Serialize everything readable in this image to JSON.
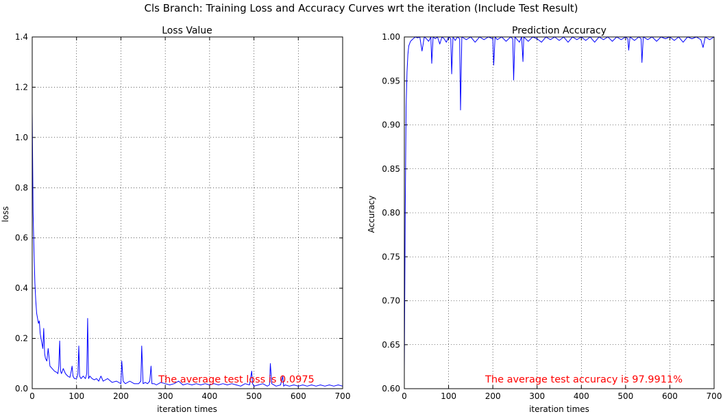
{
  "suptitle": "Cls Branch: Training Loss and Accuracy Curves wrt the iteration (Include Test Result)",
  "chart_data": [
    {
      "type": "line",
      "title": "Loss Value",
      "xlabel": "iteration times",
      "ylabel": "loss",
      "xlim": [
        0,
        700
      ],
      "ylim": [
        0.0,
        1.4
      ],
      "xticks": [
        "0",
        "100",
        "200",
        "300",
        "400",
        "500",
        "600",
        "700"
      ],
      "yticks": [
        "0.0",
        "0.2",
        "0.4",
        "0.6",
        "0.8",
        "1.0",
        "1.2",
        "1.4"
      ],
      "grid": true,
      "line_color": "#0000ff",
      "annotation": "The average test loss is 0.0975",
      "annotation_color": "#ff0000",
      "series": [
        {
          "x": [
            0,
            2,
            4,
            6,
            8,
            10,
            12,
            14,
            16,
            18,
            20,
            22,
            24,
            26,
            28,
            30,
            33,
            36,
            40,
            45,
            50,
            55,
            58,
            60,
            62,
            64,
            66,
            70,
            75,
            80,
            85,
            88,
            90,
            92,
            95,
            100,
            103,
            105,
            107,
            110,
            115,
            120,
            123,
            125,
            127,
            130,
            135,
            140,
            145,
            150,
            155,
            160,
            170,
            180,
            190,
            200,
            202,
            205,
            210,
            220,
            230,
            240,
            245,
            247,
            250,
            255,
            260,
            265,
            268,
            270,
            275,
            280,
            290,
            300,
            310,
            320,
            330,
            340,
            350,
            360,
            370,
            380,
            390,
            400,
            410,
            420,
            430,
            440,
            450,
            460,
            470,
            480,
            490,
            495,
            497,
            500,
            510,
            520,
            530,
            535,
            537,
            540,
            550,
            560,
            565,
            567,
            570,
            580,
            590,
            600,
            610,
            620,
            630,
            640,
            650,
            660,
            670,
            680,
            690,
            700
          ],
          "y": [
            1.1,
            0.7,
            0.55,
            0.42,
            0.35,
            0.3,
            0.28,
            0.26,
            0.27,
            0.22,
            0.2,
            0.18,
            0.16,
            0.24,
            0.14,
            0.12,
            0.11,
            0.16,
            0.09,
            0.08,
            0.07,
            0.065,
            0.06,
            0.09,
            0.19,
            0.07,
            0.06,
            0.08,
            0.06,
            0.05,
            0.045,
            0.07,
            0.09,
            0.05,
            0.04,
            0.04,
            0.06,
            0.17,
            0.05,
            0.04,
            0.05,
            0.04,
            0.06,
            0.28,
            0.04,
            0.05,
            0.04,
            0.035,
            0.04,
            0.03,
            0.05,
            0.03,
            0.04,
            0.025,
            0.03,
            0.02,
            0.11,
            0.03,
            0.02,
            0.03,
            0.02,
            0.02,
            0.03,
            0.17,
            0.02,
            0.025,
            0.02,
            0.03,
            0.09,
            0.02,
            0.02,
            0.015,
            0.025,
            0.02,
            0.015,
            0.02,
            0.03,
            0.015,
            0.02,
            0.015,
            0.02,
            0.015,
            0.02,
            0.015,
            0.02,
            0.015,
            0.02,
            0.015,
            0.02,
            0.015,
            0.01,
            0.02,
            0.015,
            0.07,
            0.02,
            0.01,
            0.015,
            0.02,
            0.01,
            0.015,
            0.1,
            0.02,
            0.01,
            0.015,
            0.05,
            0.01,
            0.015,
            0.01,
            0.015,
            0.01,
            0.015,
            0.01,
            0.015,
            0.01,
            0.015,
            0.01,
            0.015,
            0.01,
            0.015,
            0.01
          ]
        }
      ]
    },
    {
      "type": "line",
      "title": "Prediction Accuracy",
      "xlabel": "iteration times",
      "ylabel": "Accuracy",
      "xlim": [
        0,
        700
      ],
      "ylim": [
        0.6,
        1.0
      ],
      "xticks": [
        "0",
        "100",
        "200",
        "300",
        "400",
        "500",
        "600",
        "700"
      ],
      "yticks": [
        "0.60",
        "0.65",
        "0.70",
        "0.75",
        "0.80",
        "0.85",
        "0.90",
        "0.95",
        "1.00"
      ],
      "grid": true,
      "line_color": "#0000ff",
      "annotation": "The average test accuracy is 97.9911%",
      "annotation_color": "#ff0000",
      "series": [
        {
          "x": [
            0,
            2,
            4,
            6,
            8,
            10,
            14,
            20,
            25,
            30,
            35,
            40,
            45,
            50,
            55,
            60,
            62,
            65,
            70,
            75,
            80,
            85,
            90,
            95,
            100,
            105,
            107,
            110,
            115,
            120,
            125,
            127,
            130,
            140,
            150,
            160,
            170,
            180,
            190,
            200,
            202,
            205,
            210,
            220,
            230,
            240,
            245,
            247,
            250,
            260,
            265,
            268,
            270,
            280,
            290,
            300,
            310,
            320,
            330,
            340,
            350,
            360,
            370,
            380,
            390,
            400,
            410,
            420,
            430,
            440,
            450,
            460,
            470,
            480,
            490,
            500,
            505,
            507,
            510,
            520,
            530,
            535,
            537,
            540,
            550,
            560,
            570,
            580,
            590,
            600,
            610,
            620,
            630,
            640,
            650,
            660,
            670,
            675,
            680,
            690,
            700
          ],
          "y": [
            0.62,
            0.8,
            0.92,
            0.96,
            0.98,
            0.99,
            0.995,
            0.998,
            1.0,
            0.999,
            1.0,
            0.984,
            1.0,
            0.998,
            0.995,
            1.0,
            0.97,
            1.0,
            0.998,
            1.0,
            0.992,
            1.0,
            0.998,
            0.994,
            1.0,
            0.998,
            0.958,
            1.0,
            0.996,
            1.0,
            0.998,
            0.917,
            1.0,
            0.997,
            1.0,
            0.994,
            1.0,
            0.997,
            1.0,
            0.998,
            0.968,
            1.0,
            0.997,
            1.0,
            0.995,
            1.0,
            0.998,
            0.951,
            1.0,
            0.994,
            1.0,
            0.972,
            1.0,
            0.995,
            1.0,
            0.998,
            0.994,
            1.0,
            0.997,
            1.0,
            0.996,
            1.0,
            0.994,
            1.0,
            0.997,
            1.0,
            0.996,
            1.0,
            0.994,
            1.0,
            0.997,
            1.0,
            0.995,
            1.0,
            0.997,
            1.0,
            0.998,
            0.985,
            1.0,
            0.996,
            1.0,
            0.998,
            0.971,
            1.0,
            0.997,
            1.0,
            0.995,
            1.0,
            0.998,
            1.0,
            0.996,
            1.0,
            0.994,
            1.0,
            0.998,
            1.0,
            0.997,
            0.988,
            1.0,
            0.997,
            1.0
          ]
        }
      ]
    }
  ]
}
